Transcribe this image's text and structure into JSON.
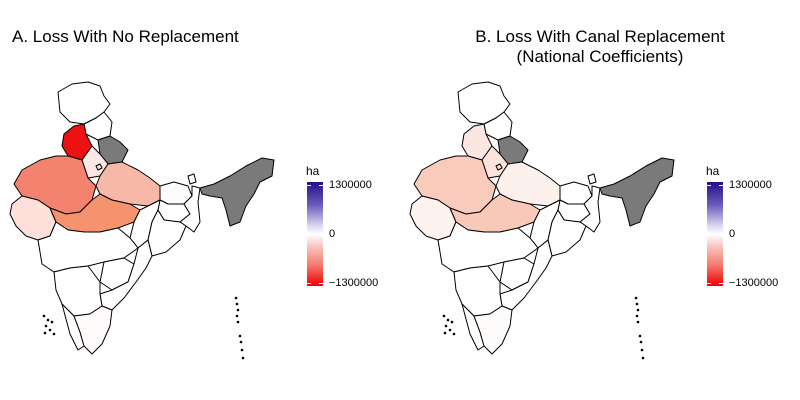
{
  "colors": {
    "no_data": "#7a7a7a",
    "scale_high": "#211088",
    "scale_mid": "#ffffff",
    "scale_low": "#ee0000"
  },
  "panels": [
    {
      "title_lines": [
        "A. Loss With No Replacement"
      ],
      "state_fills": {
        "jk": "#ffffff",
        "hp": "#ffffff",
        "pb": "#ee1111",
        "uk": "#7a7a7a",
        "hr": "#fbe7e4",
        "dl": "#fbe7e4",
        "rj": "#f3826f",
        "up": "#f8b8a8",
        "bh": "#fefcfb",
        "gj": "#fde0da",
        "mp": "#f5936f",
        "mh": "#ffffff",
        "tg": "#ffffff",
        "ap": "#ffffff",
        "ka": "#ffffff",
        "tn": "#fefbfa",
        "od": "#ffffff",
        "jh": "#ffffff",
        "cg": "#ffffff",
        "wb": "#ffffff",
        "ne": "#7a7a7a",
        "sk": "#ffffff",
        "kl": "#ffffff"
      },
      "legend": {
        "title": "ha",
        "max": "1300000",
        "mid": "0",
        "min": "−1300000"
      }
    },
    {
      "title_lines": [
        "B. Loss With Canal Replacement",
        "(National Coefficients)"
      ],
      "state_fills": {
        "jk": "#ffffff",
        "hp": "#ffffff",
        "pb": "#fbe6e2",
        "uk": "#7a7a7a",
        "hr": "#fde3de",
        "dl": "#fde3de",
        "rj": "#f9cbbd",
        "up": "#fdf1ee",
        "bh": "#ffffff",
        "gj": "#fef2ef",
        "mp": "#f8c8b8",
        "mh": "#ffffff",
        "tg": "#ffffff",
        "ap": "#ffffff",
        "ka": "#ffffff",
        "tn": "#fefcfb",
        "od": "#ffffff",
        "jh": "#ffffff",
        "cg": "#ffffff",
        "wb": "#ffffff",
        "ne": "#7a7a7a",
        "sk": "#ffffff",
        "kl": "#ffffff"
      },
      "legend": {
        "title": "ha",
        "max": "1300000",
        "mid": "0",
        "min": "−1300000"
      }
    }
  ]
}
